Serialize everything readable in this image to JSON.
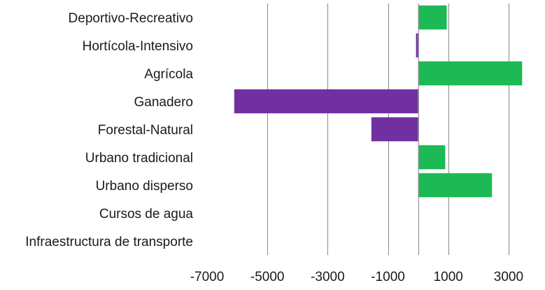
{
  "chart_data": {
    "type": "bar",
    "orientation": "horizontal",
    "title": "",
    "xlabel": "",
    "ylabel": "",
    "categories": [
      "Deportivo-Recreativo",
      "Hortícola-Intensivo",
      "Agrícola",
      "Ganadero",
      "Forestal-Natural",
      "Urbano tradicional",
      "Urbano disperso",
      "Cursos de agua",
      "Infraestructura de transporte"
    ],
    "values": [
      950,
      -60,
      3450,
      -6100,
      -1550,
      900,
      2450,
      0,
      0
    ],
    "xlim": [
      -7000,
      4000
    ],
    "xticks": [
      -7000,
      -5000,
      -3000,
      -1000,
      1000,
      3000
    ],
    "xtick_labels": [
      "-7000",
      "-5000",
      "-3000",
      "-1000",
      "1000",
      "3000"
    ],
    "grid": "vertical",
    "legend": "none",
    "colors": {
      "positive": "#1db954",
      "negative": "#7030a0",
      "grid": "#8a8a8a"
    }
  }
}
